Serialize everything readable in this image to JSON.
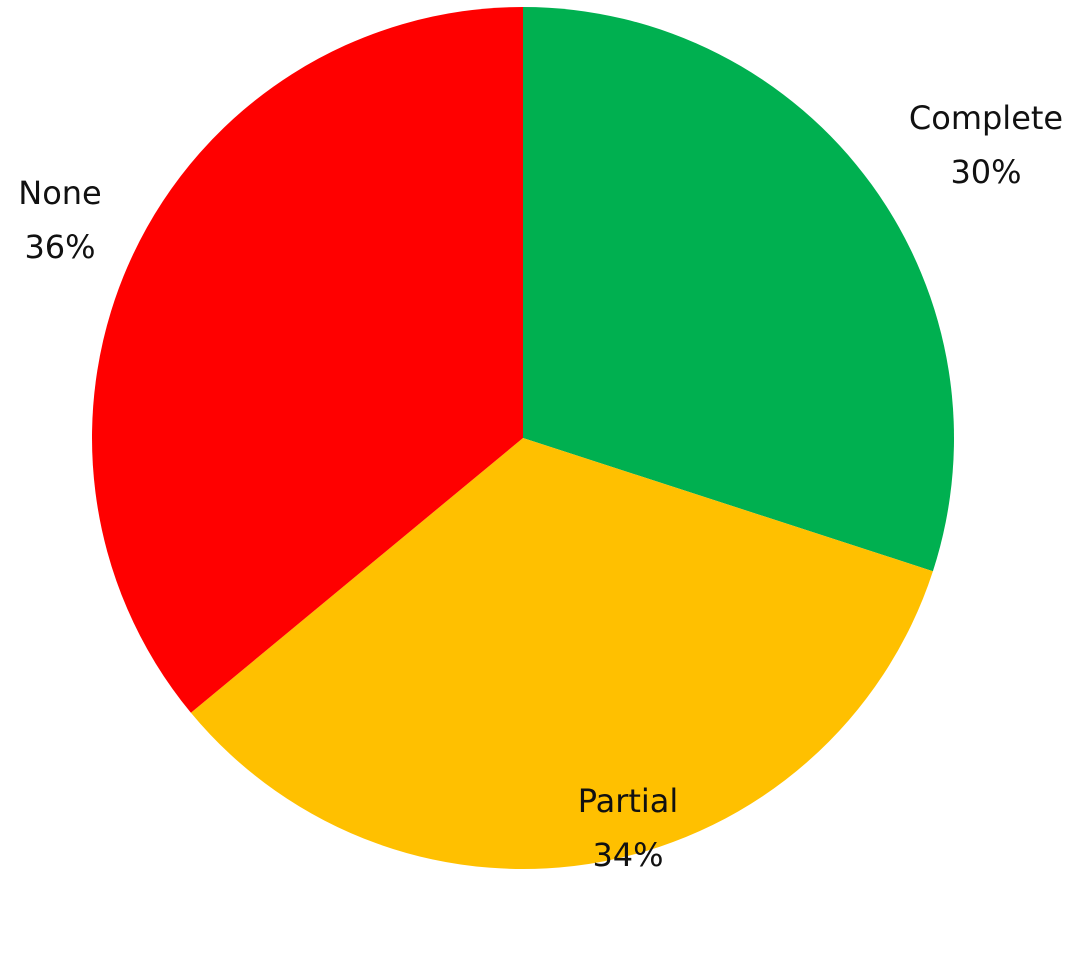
{
  "chart_data": {
    "type": "pie",
    "start_angle_deg": 0,
    "direction": "clockwise",
    "slices": [
      {
        "label": "Complete",
        "value": 30,
        "display": "30%",
        "color": "#00B050"
      },
      {
        "label": "Partial",
        "value": 34,
        "display": "34%",
        "color": "#FFC000"
      },
      {
        "label": "None",
        "value": 36,
        "display": "36%",
        "color": "#FF0000"
      }
    ]
  }
}
